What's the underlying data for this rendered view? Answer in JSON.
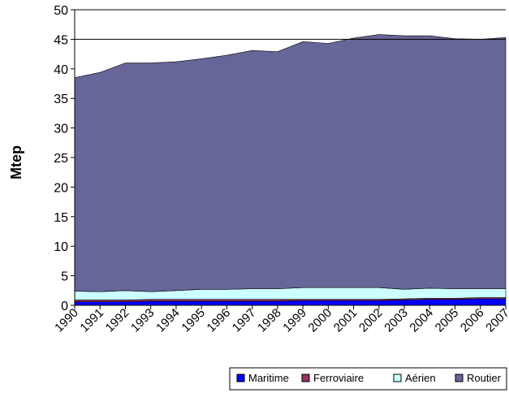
{
  "chart_data": {
    "type": "area",
    "stacked": true,
    "title": "",
    "xlabel": "",
    "ylabel": "Mtep",
    "ylim": [
      0,
      50
    ],
    "yticks": [
      0,
      5,
      10,
      15,
      20,
      25,
      30,
      35,
      40,
      45,
      50
    ],
    "grid": "horizontal line at 45",
    "legend_position": "bottom-right",
    "x": [
      1990,
      1991,
      1992,
      1993,
      1994,
      1995,
      1996,
      1997,
      1998,
      1999,
      2000,
      2001,
      2002,
      2003,
      2004,
      2005,
      2006,
      2007
    ],
    "x_tick_labels": [
      "1990",
      "1991",
      "1992",
      "1993",
      "1994",
      "1995",
      "1996",
      "1997",
      "1998",
      "1999",
      "2000",
      "2001",
      "2002",
      "2003",
      "2004",
      "2005",
      "2006",
      "2007"
    ],
    "series": [
      {
        "name": "Maritime",
        "color": "#0000ff",
        "values": [
          0.6,
          0.6,
          0.6,
          0.7,
          0.7,
          0.7,
          0.7,
          0.7,
          0.7,
          0.8,
          0.8,
          0.8,
          0.8,
          0.9,
          1.0,
          1.0,
          1.1,
          1.1
        ]
      },
      {
        "name": "Ferroviaire",
        "color": "#993366",
        "values": [
          0.3,
          0.3,
          0.3,
          0.3,
          0.3,
          0.3,
          0.3,
          0.3,
          0.3,
          0.2,
          0.2,
          0.2,
          0.2,
          0.2,
          0.2,
          0.2,
          0.2,
          0.2
        ]
      },
      {
        "name": "Aérien",
        "color": "#ccffff",
        "values": [
          1.5,
          1.4,
          1.6,
          1.3,
          1.5,
          1.7,
          1.7,
          1.8,
          1.8,
          2.0,
          2.0,
          2.0,
          2.0,
          1.6,
          1.7,
          1.6,
          1.5,
          1.5
        ]
      },
      {
        "name": "Routier",
        "color": "#666699",
        "values": [
          36.1,
          37.1,
          38.5,
          38.7,
          38.7,
          39.0,
          39.6,
          40.3,
          40.1,
          41.6,
          41.3,
          42.2,
          42.8,
          42.9,
          42.7,
          42.3,
          42.2,
          42.5
        ]
      }
    ]
  }
}
